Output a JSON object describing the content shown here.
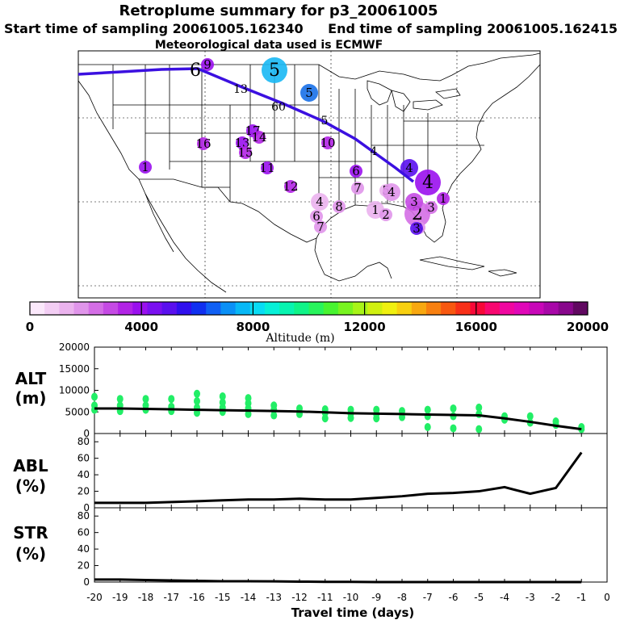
{
  "header": {
    "title": "Retroplume summary for p3_20061005",
    "start_label": "Start time of sampling 20061005.162340",
    "end_label": "End time of sampling 20061005.162415",
    "met_label": "Meteorological data used is ECMWF"
  },
  "colors": {
    "trajectory": "#3b10e0",
    "alt_points": "#22ee66",
    "axis": "#000000",
    "colorbar": [
      "#fbe8fb",
      "#f3cef4",
      "#ebb3ee",
      "#e095ea",
      "#d46ee6",
      "#c54ae4",
      "#b224e6",
      "#9a10ee",
      "#7a10f0",
      "#5a10ee",
      "#3010ee",
      "#1030f0",
      "#1060f4",
      "#0a90f6",
      "#08b8f6",
      "#08dcf4",
      "#08f0d8",
      "#08f4b0",
      "#10f488",
      "#28f45c",
      "#48f430",
      "#78f420",
      "#a8f418",
      "#d0f010",
      "#f0f010",
      "#f8d010",
      "#f8a810",
      "#f88010",
      "#f85810",
      "#f83018",
      "#f80838",
      "#f80870",
      "#f008a0",
      "#e008b8",
      "#c808b8",
      "#a808a8",
      "#88088c",
      "#600860"
    ]
  },
  "map": {
    "path_labels": [
      "6",
      "9",
      "13",
      "60",
      "5",
      "4"
    ],
    "dots": [
      {
        "label": "5",
        "color": "#18b8f4",
        "size": "large"
      },
      {
        "label": "5",
        "color": "#1870e8",
        "size": "medium"
      },
      {
        "label": "9",
        "color": "#9a10ee",
        "size": "small"
      },
      {
        "label": "17",
        "color": "#9a10ee",
        "size": "small"
      },
      {
        "label": "16",
        "color": "#b224e6",
        "size": "small"
      },
      {
        "label": "13",
        "color": "#9a10ee",
        "size": "small"
      },
      {
        "label": "14",
        "color": "#b224e6",
        "size": "small"
      },
      {
        "label": "15",
        "color": "#b224e6",
        "size": "small"
      },
      {
        "label": "11",
        "color": "#9a10ee",
        "size": "small"
      },
      {
        "label": "12",
        "color": "#b224e6",
        "size": "small"
      },
      {
        "label": "10",
        "color": "#b224e6",
        "size": "small"
      },
      {
        "label": "6",
        "color": "#9a10ee",
        "size": "small"
      },
      {
        "label": "7",
        "color": "#e095ea",
        "size": "small"
      },
      {
        "label": "5",
        "color": "#ebb3ee",
        "size": "small"
      },
      {
        "label": "4",
        "color": "#ebb3ee",
        "size": "medium"
      },
      {
        "label": "6",
        "color": "#e095ea",
        "size": "small"
      },
      {
        "label": "7",
        "color": "#e095ea",
        "size": "small"
      },
      {
        "label": "8",
        "color": "#e095ea",
        "size": "small"
      },
      {
        "label": "1",
        "color": "#ebb3ee",
        "size": "medium"
      },
      {
        "label": "2",
        "color": "#e095ea",
        "size": "small"
      },
      {
        "label": "2",
        "color": "#d46ee6",
        "size": "large"
      },
      {
        "label": "3",
        "color": "#c54ae4",
        "size": "medium"
      },
      {
        "label": "3",
        "color": "#d46ee6",
        "size": "small"
      },
      {
        "label": "3",
        "color": "#e095ea",
        "size": "small"
      },
      {
        "label": "1",
        "color": "#b224e6",
        "size": "small"
      },
      {
        "label": "4",
        "color": "#e095ea",
        "size": "medium"
      },
      {
        "label": "4",
        "color": "#9a10ee",
        "size": "large"
      },
      {
        "label": "4",
        "color": "#5a10ee",
        "size": "medium"
      },
      {
        "label": "1",
        "color": "#9a10ee",
        "size": "small"
      },
      {
        "label": "3",
        "color": "#5a10ee",
        "size": "small"
      }
    ]
  },
  "colorbar": {
    "ticks": [
      "0",
      "4000",
      "8000",
      "12000",
      "16000",
      "20000"
    ],
    "label": "Altitude (m)"
  },
  "chart_data": [
    {
      "type": "line",
      "panel": "ALT",
      "ylabel": "ALT\n(m)",
      "ylabel_line1": "ALT",
      "ylabel_line2": "(m)",
      "ylim": [
        0,
        20000
      ],
      "yticks": [
        "0",
        "5000",
        "10000",
        "15000",
        "20000"
      ],
      "x": [
        -20,
        -19,
        -18,
        -17,
        -16,
        -15,
        -14,
        -13,
        -12,
        -11,
        -10,
        -9,
        -8,
        -7,
        -6,
        -5,
        -4,
        -3,
        -2,
        -1
      ],
      "values": [
        5800,
        5800,
        5700,
        5600,
        5500,
        5400,
        5300,
        5200,
        5100,
        4900,
        4700,
        4600,
        4500,
        4400,
        4300,
        4200,
        3500,
        2700,
        1800,
        1000
      ],
      "scatter_points": [
        {
          "x": -20,
          "y": 5500
        },
        {
          "x": -20,
          "y": 6500
        },
        {
          "x": -20,
          "y": 8500
        },
        {
          "x": -19,
          "y": 5200
        },
        {
          "x": -19,
          "y": 6500
        },
        {
          "x": -19,
          "y": 8000
        },
        {
          "x": -18,
          "y": 5500
        },
        {
          "x": -18,
          "y": 6500
        },
        {
          "x": -18,
          "y": 8000
        },
        {
          "x": -17,
          "y": 5200
        },
        {
          "x": -17,
          "y": 6200
        },
        {
          "x": -17,
          "y": 8000
        },
        {
          "x": -16,
          "y": 4800
        },
        {
          "x": -16,
          "y": 6000
        },
        {
          "x": -16,
          "y": 7500
        },
        {
          "x": -16,
          "y": 9200
        },
        {
          "x": -15,
          "y": 5000
        },
        {
          "x": -15,
          "y": 6000
        },
        {
          "x": -15,
          "y": 7200
        },
        {
          "x": -15,
          "y": 8600
        },
        {
          "x": -14,
          "y": 4500
        },
        {
          "x": -14,
          "y": 5800
        },
        {
          "x": -14,
          "y": 7000
        },
        {
          "x": -14,
          "y": 8200
        },
        {
          "x": -13,
          "y": 4200
        },
        {
          "x": -13,
          "y": 5500
        },
        {
          "x": -13,
          "y": 6500
        },
        {
          "x": -12,
          "y": 4500
        },
        {
          "x": -12,
          "y": 5800
        },
        {
          "x": -11,
          "y": 3500
        },
        {
          "x": -11,
          "y": 4800
        },
        {
          "x": -11,
          "y": 5600
        },
        {
          "x": -10,
          "y": 3600
        },
        {
          "x": -10,
          "y": 4600
        },
        {
          "x": -10,
          "y": 5500
        },
        {
          "x": -9,
          "y": 3500
        },
        {
          "x": -9,
          "y": 4500
        },
        {
          "x": -9,
          "y": 5500
        },
        {
          "x": -8,
          "y": 3800
        },
        {
          "x": -8,
          "y": 5200
        },
        {
          "x": -7,
          "y": 1500
        },
        {
          "x": -7,
          "y": 4000
        },
        {
          "x": -7,
          "y": 5500
        },
        {
          "x": -6,
          "y": 1200
        },
        {
          "x": -6,
          "y": 4000
        },
        {
          "x": -6,
          "y": 5800
        },
        {
          "x": -5,
          "y": 1000
        },
        {
          "x": -5,
          "y": 4500
        },
        {
          "x": -5,
          "y": 6000
        },
        {
          "x": -4,
          "y": 3200
        },
        {
          "x": -4,
          "y": 4000
        },
        {
          "x": -3,
          "y": 2500
        },
        {
          "x": -3,
          "y": 4000
        },
        {
          "x": -2,
          "y": 2000
        },
        {
          "x": -2,
          "y": 2800
        },
        {
          "x": -1,
          "y": 1000
        },
        {
          "x": -1,
          "y": 1500
        }
      ]
    },
    {
      "type": "line",
      "panel": "ABL",
      "ylabel": "ABL\n(%)",
      "ylabel_line1": "ABL",
      "ylabel_line2": "(%)",
      "ylim": [
        0,
        90
      ],
      "yticks": [
        "0",
        "20",
        "40",
        "60",
        "80"
      ],
      "x": [
        -20,
        -19,
        -18,
        -17,
        -16,
        -15,
        -14,
        -13,
        -12,
        -11,
        -10,
        -9,
        -8,
        -7,
        -6,
        -5,
        -4,
        -3,
        -2,
        -1
      ],
      "values": [
        6,
        6,
        6,
        7,
        8,
        9,
        10,
        10,
        11,
        10,
        10,
        12,
        14,
        17,
        18,
        20,
        25,
        17,
        24,
        67
      ]
    },
    {
      "type": "line",
      "panel": "STR",
      "ylabel": "STR\n(%)",
      "ylabel_line1": "STR",
      "ylabel_line2": "(%)",
      "ylim": [
        0,
        90
      ],
      "yticks": [
        "0",
        "20",
        "40",
        "60",
        "80"
      ],
      "x": [
        -20,
        -19,
        -18,
        -17,
        -16,
        -15,
        -14,
        -13,
        -12,
        -11,
        -10,
        -9,
        -8,
        -7,
        -6,
        -5,
        -4,
        -3,
        -2,
        -1
      ],
      "values": [
        3,
        3,
        2.5,
        2,
        1.5,
        1,
        1,
        0.8,
        0.5,
        0.3,
        0.2,
        0,
        0,
        0,
        0,
        0,
        0,
        0,
        0,
        0
      ]
    }
  ],
  "xaxis": {
    "label": "Travel time (days)",
    "ticks": [
      "-20",
      "-19",
      "-18",
      "-17",
      "-16",
      "-15",
      "-14",
      "-13",
      "-12",
      "-11",
      "-10",
      "-9",
      "-8",
      "-7",
      "-6",
      "-5",
      "-4",
      "-3",
      "-2",
      "-1",
      "0"
    ]
  }
}
